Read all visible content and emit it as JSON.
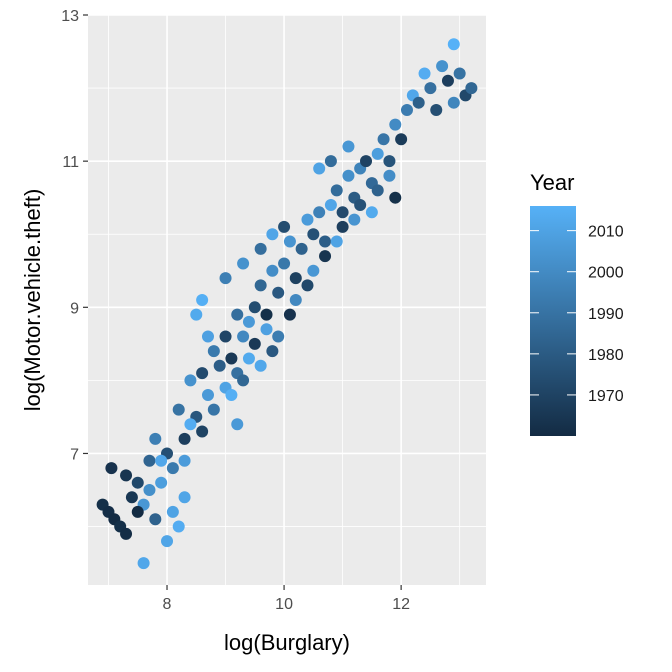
{
  "chart_data": {
    "type": "scatter",
    "xlabel": "log(Burglary)",
    "ylabel": "log(Motor.vehicle.theft)",
    "xlim": [
      6.65,
      13.45
    ],
    "ylim": [
      5.2,
      13.0
    ],
    "x_ticks": [
      8,
      10,
      12
    ],
    "y_ticks": [
      7,
      9,
      11,
      13
    ],
    "x_tick_labels": [
      "8",
      "10",
      "12"
    ],
    "y_tick_labels": [
      "7",
      "9",
      "11",
      "13"
    ],
    "grid": true,
    "legend": {
      "title": "Year",
      "placement": "right",
      "type": "colorbar",
      "range": [
        1960,
        2016
      ],
      "ticks": [
        1970,
        1980,
        1990,
        2000,
        2010
      ],
      "tick_labels": [
        "1970",
        "1980",
        "1990",
        "2000",
        "2010"
      ],
      "color_low": "#132B43",
      "color_high": "#56B1F7"
    },
    "colors": {
      "panel_background": "#EBEBEB",
      "grid": "#FFFFFF",
      "year_low": "#132B43",
      "year_high": "#56B1F7"
    },
    "series": [
      {
        "points": [
          [
            6.9,
            6.3,
            1962
          ],
          [
            7.0,
            6.2,
            1961
          ],
          [
            7.05,
            6.8,
            1963
          ],
          [
            7.1,
            6.1,
            1960
          ],
          [
            7.2,
            6.0,
            1962
          ],
          [
            7.3,
            5.9,
            1961
          ],
          [
            7.4,
            6.4,
            1965
          ],
          [
            7.5,
            6.6,
            1972
          ],
          [
            7.6,
            6.3,
            2005
          ],
          [
            7.6,
            5.5,
            2012
          ],
          [
            7.7,
            6.9,
            1984
          ],
          [
            7.8,
            7.2,
            1995
          ],
          [
            7.9,
            6.6,
            2008
          ],
          [
            8.0,
            7.0,
            1975
          ],
          [
            8.1,
            6.2,
            2010
          ],
          [
            8.2,
            6.0,
            2014
          ],
          [
            8.0,
            5.8,
            2011
          ],
          [
            8.2,
            7.6,
            1990
          ],
          [
            8.3,
            7.2,
            1968
          ],
          [
            8.4,
            8.0,
            2003
          ],
          [
            8.5,
            7.5,
            1978
          ],
          [
            8.5,
            8.9,
            2013
          ],
          [
            8.6,
            9.1,
            2015
          ],
          [
            8.7,
            8.6,
            2009
          ],
          [
            8.8,
            8.4,
            1993
          ],
          [
            8.9,
            8.2,
            1981
          ],
          [
            9.0,
            8.6,
            1971
          ],
          [
            9.1,
            8.3,
            1966
          ],
          [
            9.2,
            8.9,
            1988
          ],
          [
            9.3,
            8.6,
            1999
          ],
          [
            9.4,
            8.8,
            2006
          ],
          [
            9.5,
            9.0,
            1974
          ],
          [
            9.6,
            9.3,
            1985
          ],
          [
            9.7,
            8.9,
            1962
          ],
          [
            9.8,
            9.5,
            2001
          ],
          [
            9.9,
            9.2,
            1979
          ],
          [
            10.0,
            9.6,
            1992
          ],
          [
            10.1,
            9.9,
            2004
          ],
          [
            10.2,
            9.4,
            1969
          ],
          [
            10.3,
            9.8,
            1983
          ],
          [
            10.4,
            10.2,
            2007
          ],
          [
            10.5,
            10.0,
            1976
          ],
          [
            10.6,
            10.3,
            1996
          ],
          [
            10.7,
            9.7,
            1964
          ],
          [
            10.8,
            10.4,
            2011
          ],
          [
            10.9,
            10.6,
            1987
          ],
          [
            11.0,
            10.3,
            1973
          ],
          [
            11.1,
            10.8,
            2002
          ],
          [
            11.2,
            10.5,
            1980
          ],
          [
            11.3,
            10.9,
            1997
          ],
          [
            11.4,
            11.0,
            1970
          ],
          [
            11.5,
            10.7,
            1986
          ],
          [
            11.6,
            11.1,
            2008
          ],
          [
            11.7,
            11.3,
            1991
          ],
          [
            11.8,
            11.0,
            1977
          ],
          [
            11.9,
            11.5,
            2000
          ],
          [
            12.0,
            11.3,
            1967
          ],
          [
            12.1,
            11.7,
            1994
          ],
          [
            12.2,
            11.9,
            2012
          ],
          [
            12.3,
            11.8,
            1982
          ],
          [
            12.4,
            12.2,
            2014
          ],
          [
            12.5,
            12.0,
            1989
          ],
          [
            12.6,
            11.7,
            1975
          ],
          [
            12.7,
            12.3,
            2003
          ],
          [
            12.8,
            12.1,
            1968
          ],
          [
            12.9,
            12.6,
            2016
          ],
          [
            13.0,
            12.2,
            1990
          ],
          [
            13.1,
            11.9,
            1972
          ],
          [
            13.2,
            12.0,
            1985
          ],
          [
            12.9,
            11.8,
            1998
          ],
          [
            8.3,
            6.4,
            2011
          ],
          [
            8.6,
            7.3,
            1970
          ],
          [
            8.7,
            7.8,
            2006
          ],
          [
            9.0,
            7.9,
            2010
          ],
          [
            9.2,
            8.1,
            1989
          ],
          [
            9.4,
            8.3,
            2013
          ],
          [
            9.5,
            8.5,
            1966
          ],
          [
            9.7,
            8.7,
            2009
          ],
          [
            9.9,
            8.6,
            1994
          ],
          [
            10.1,
            8.9,
            1963
          ],
          [
            10.2,
            9.1,
            1999
          ],
          [
            10.4,
            9.3,
            1972
          ],
          [
            10.5,
            9.5,
            2005
          ],
          [
            10.7,
            9.9,
            1981
          ],
          [
            10.9,
            9.9,
            2010
          ],
          [
            11.0,
            10.1,
            1968
          ],
          [
            11.2,
            10.2,
            2004
          ],
          [
            11.3,
            10.4,
            1976
          ],
          [
            11.5,
            10.3,
            2013
          ],
          [
            11.6,
            10.6,
            1983
          ],
          [
            11.8,
            10.8,
            2001
          ],
          [
            11.9,
            10.5,
            1962
          ],
          [
            10.6,
            10.9,
            2010
          ],
          [
            10.8,
            11.0,
            1987
          ],
          [
            11.1,
            11.2,
            2005
          ],
          [
            9.0,
            9.4,
            1995
          ],
          [
            9.3,
            9.6,
            2003
          ],
          [
            9.6,
            9.8,
            1988
          ],
          [
            9.8,
            10.0,
            2011
          ],
          [
            10.0,
            10.1,
            1974
          ],
          [
            7.3,
            6.7,
            1964
          ],
          [
            7.5,
            6.2,
            1960
          ],
          [
            7.7,
            6.5,
            2002
          ],
          [
            7.8,
            6.1,
            1983
          ],
          [
            7.9,
            6.9,
            2012
          ],
          [
            8.1,
            6.8,
            1993
          ],
          [
            8.3,
            6.9,
            2007
          ],
          [
            8.4,
            7.4,
            2014
          ],
          [
            8.6,
            8.1,
            1973
          ],
          [
            8.8,
            7.6,
            1991
          ],
          [
            9.1,
            7.8,
            2015
          ],
          [
            9.2,
            7.4,
            2006
          ],
          [
            9.3,
            8.0,
            1985
          ],
          [
            9.6,
            8.2,
            2012
          ],
          [
            9.8,
            8.4,
            1979
          ]
        ]
      }
    ]
  }
}
